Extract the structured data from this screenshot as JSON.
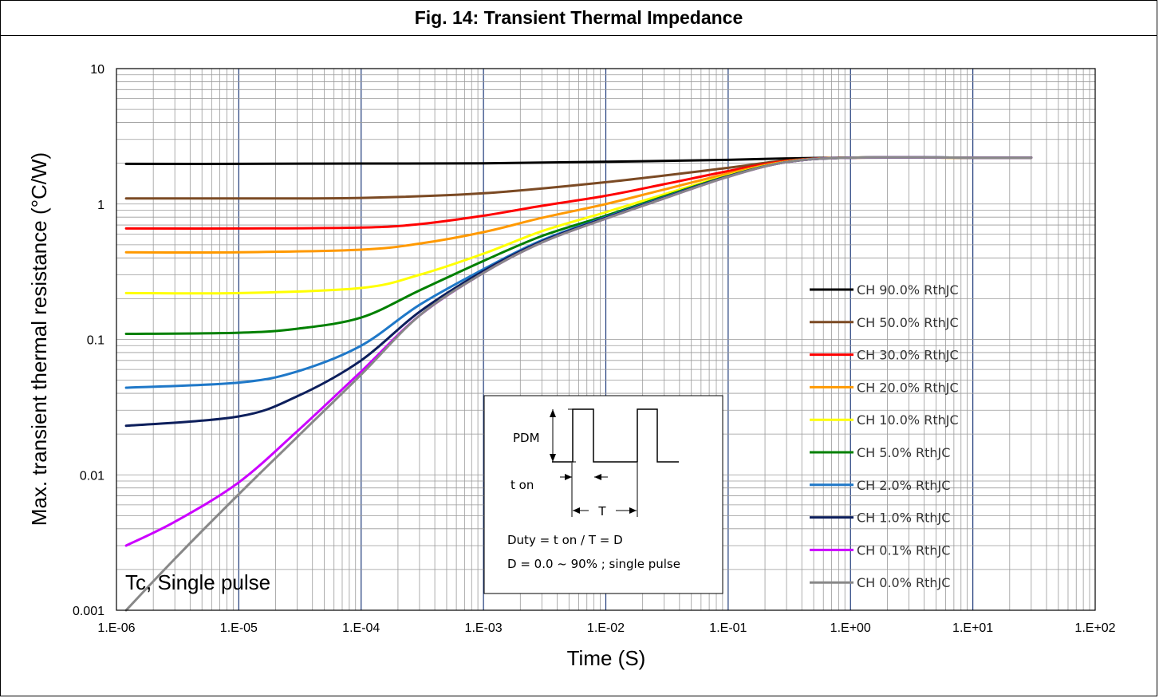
{
  "figure": {
    "title": "Fig. 14: Transient Thermal Impedance"
  },
  "chart_data": {
    "type": "line",
    "title": "Fig. 14: Transient Thermal Impedance",
    "xlabel": "Time (S)",
    "ylabel": "Max. transient thermal resistance (°C/W)",
    "x_scale": "log",
    "y_scale": "log",
    "xlim": [
      1e-06,
      100
    ],
    "ylim": [
      0.001,
      10
    ],
    "x_ticks": [
      "1.E-06",
      "1.E-05",
      "1.E-04",
      "1.E-03",
      "1.E-02",
      "1.E-01",
      "1.E+00",
      "1.E+01",
      "1.E+02"
    ],
    "y_ticks": [
      "0.001",
      "0.01",
      "0.1",
      "1",
      "10"
    ],
    "grid": true,
    "legend_position": "right",
    "annotation": "Tc, Single pulse",
    "series": [
      {
        "name": "CH 90.0% RthJC",
        "color": "#000000",
        "x": [
          1.2e-06,
          1e-05,
          0.0001,
          0.001,
          0.01,
          0.1,
          0.3,
          1,
          10,
          30
        ],
        "y": [
          1.98,
          1.98,
          1.99,
          2.0,
          2.05,
          2.12,
          2.17,
          2.2,
          2.2,
          2.2
        ]
      },
      {
        "name": "CH 50.0% RthJC",
        "color": "#7b4a24",
        "x": [
          1.2e-06,
          1e-05,
          0.0001,
          0.001,
          0.01,
          0.1,
          0.3,
          1,
          10,
          30
        ],
        "y": [
          1.1,
          1.1,
          1.11,
          1.2,
          1.45,
          1.85,
          2.1,
          2.2,
          2.2,
          2.2
        ]
      },
      {
        "name": "CH 30.0% RthJC",
        "color": "#ff0000",
        "x": [
          1.2e-06,
          1e-05,
          0.0001,
          0.0003,
          0.001,
          0.003,
          0.01,
          0.03,
          0.1,
          0.3,
          1,
          10,
          30
        ],
        "y": [
          0.66,
          0.66,
          0.67,
          0.71,
          0.82,
          0.97,
          1.15,
          1.4,
          1.75,
          2.08,
          2.2,
          2.2,
          2.2
        ]
      },
      {
        "name": "CH 20.0% RthJC",
        "color": "#ff9900",
        "x": [
          1.2e-06,
          1e-05,
          0.0001,
          0.0003,
          0.001,
          0.003,
          0.01,
          0.03,
          0.1,
          0.3,
          1,
          10,
          30
        ],
        "y": [
          0.44,
          0.44,
          0.46,
          0.51,
          0.62,
          0.79,
          1.0,
          1.28,
          1.68,
          2.06,
          2.2,
          2.2,
          2.2
        ]
      },
      {
        "name": "CH 10.0% RthJC",
        "color": "#ffff00",
        "x": [
          1.2e-06,
          1e-05,
          0.0001,
          0.0003,
          0.001,
          0.003,
          0.01,
          0.03,
          0.1,
          0.3,
          1,
          10,
          30
        ],
        "y": [
          0.22,
          0.22,
          0.24,
          0.3,
          0.43,
          0.63,
          0.87,
          1.18,
          1.63,
          2.05,
          2.2,
          2.2,
          2.2
        ]
      },
      {
        "name": "CH 5.0% RthJC",
        "color": "#008000",
        "x": [
          1.2e-06,
          1e-05,
          3e-05,
          0.0001,
          0.0003,
          0.001,
          0.003,
          0.01,
          0.03,
          0.1,
          0.3,
          1,
          10,
          30
        ],
        "y": [
          0.11,
          0.112,
          0.12,
          0.145,
          0.23,
          0.38,
          0.58,
          0.82,
          1.14,
          1.61,
          2.04,
          2.2,
          2.2,
          2.2
        ]
      },
      {
        "name": "CH 2.0% RthJC",
        "color": "#1f78c8",
        "x": [
          1.2e-06,
          1e-05,
          3e-05,
          0.0001,
          0.0003,
          0.001,
          0.003,
          0.01,
          0.03,
          0.1,
          0.3,
          1,
          10,
          30
        ],
        "y": [
          0.044,
          0.048,
          0.058,
          0.09,
          0.18,
          0.33,
          0.54,
          0.8,
          1.12,
          1.6,
          2.04,
          2.2,
          2.2,
          2.2
        ]
      },
      {
        "name": "CH 1.0% RthJC",
        "color": "#0d1f5c",
        "x": [
          1.2e-06,
          1e-05,
          3e-05,
          0.0001,
          0.0003,
          0.001,
          0.003,
          0.01,
          0.03,
          0.1,
          0.3,
          1,
          10,
          30
        ],
        "y": [
          0.023,
          0.027,
          0.038,
          0.07,
          0.16,
          0.32,
          0.53,
          0.79,
          1.11,
          1.6,
          2.04,
          2.2,
          2.2,
          2.2
        ]
      },
      {
        "name": "CH 0.1% RthJC",
        "color": "#cc00ff",
        "x": [
          1.2e-06,
          3e-06,
          1e-05,
          3e-05,
          0.0001,
          0.0003,
          0.001,
          0.003,
          0.01,
          0.03,
          0.1,
          0.3,
          1,
          10,
          30
        ],
        "y": [
          0.003,
          0.0045,
          0.0088,
          0.021,
          0.058,
          0.15,
          0.31,
          0.52,
          0.78,
          1.1,
          1.59,
          2.04,
          2.2,
          2.2,
          2.2
        ]
      },
      {
        "name": "CH 0.0% RthJC",
        "color": "#888888",
        "x": [
          1.2e-06,
          3e-06,
          1e-05,
          3e-05,
          0.0001,
          0.0003,
          0.001,
          0.003,
          0.01,
          0.03,
          0.1,
          0.3,
          1,
          10,
          30
        ],
        "y": [
          0.001,
          0.0024,
          0.0072,
          0.019,
          0.055,
          0.15,
          0.31,
          0.52,
          0.78,
          1.1,
          1.59,
          2.04,
          2.2,
          2.2,
          2.2
        ]
      }
    ]
  },
  "inset": {
    "pdm_label": "PDM",
    "ton_label": "t on",
    "period_label": "T",
    "duty_formula": "Duty = t on / T = D",
    "duty_range": "D = 0.0 ~ 90% ; single pulse"
  }
}
